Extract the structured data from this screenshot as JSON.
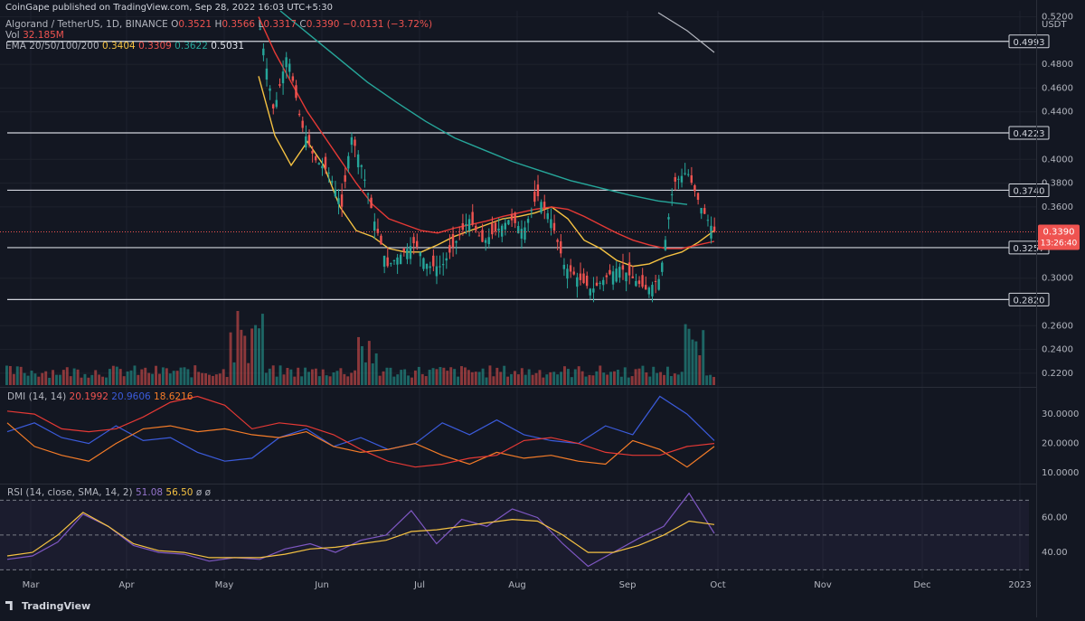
{
  "header": {
    "published": "CoinGape published on TradingView.com, Sep 28, 2022 16:03 UTC+5:30"
  },
  "legend": {
    "symbol": "Algorand / TetherUS, 1D, BINANCE",
    "o_label": "O",
    "o_value": "0.3521",
    "h_label": "H",
    "h_value": "0.3566",
    "l_label": "L",
    "l_value": "0.3317",
    "c_label": "C",
    "c_value": "0.3390",
    "change": "−0.0131 (−3.72%)",
    "vol_label": "Vol",
    "vol_value": "32.185M",
    "ema_label": "EMA 20/50/100/200",
    "ema20": "0.3404",
    "ema50": "0.3309",
    "ema100": "0.3622",
    "ema200": "0.5031",
    "dmi_label": "DMI (14, 14)",
    "dmi_adx": "20.1992",
    "dmi_plus": "20.9606",
    "dmi_minus": "18.6216",
    "rsi_label": "RSI (14, close, SMA, 14, 2)",
    "rsi_value": "51.08",
    "rsi_sma": "56.50",
    "rsi_x1": "ø",
    "rsi_x2": "ø"
  },
  "footer": {
    "brand": "TradingView"
  },
  "colors": {
    "bg": "#131722",
    "up": "#26a69a",
    "down": "#ef5350",
    "ema20": "#f5c242",
    "ema50": "#e53935",
    "ema100": "#26a69a",
    "ema200": "#b2b5be",
    "dmi_plus": "#3b5bdb",
    "dmi_minus": "#f57c28",
    "dmi_adx": "#e53935",
    "rsi": "#7e57c2",
    "rsi_sma": "#f5c242"
  },
  "chart_data": [
    {
      "type": "candlestick",
      "currency": "USDT",
      "x_ticks": [
        "Mar",
        "Apr",
        "May",
        "Jun",
        "Jul",
        "Aug",
        "Sep",
        "Oct",
        "Nov",
        "Dec",
        "2023"
      ],
      "y_ticks": [
        "0.5200",
        "0.4800",
        "0.4600",
        "0.4400",
        "0.4000",
        "0.3800",
        "0.3600",
        "0.3000",
        "0.2600",
        "0.2400",
        "0.2200"
      ],
      "ylim": [
        0.21,
        0.525
      ],
      "levels": [
        0.4993,
        0.4223,
        0.374,
        0.3257,
        0.282
      ],
      "last_price": "0.3390",
      "countdown": "13:26:40",
      "ema_series": [
        {
          "name": "EMA 20",
          "values": [
            0.47,
            0.42,
            0.395,
            0.415,
            0.395,
            0.36,
            0.34,
            0.335,
            0.325,
            0.322,
            0.322,
            0.328,
            0.335,
            0.34,
            0.345,
            0.35,
            0.352,
            0.355,
            0.36,
            0.35,
            0.332,
            0.325,
            0.315,
            0.31,
            0.312,
            0.318,
            0.322,
            0.33,
            0.34
          ]
        },
        {
          "name": "EMA 50",
          "values": [
            0.52,
            0.49,
            0.465,
            0.44,
            0.42,
            0.4,
            0.38,
            0.362,
            0.35,
            0.345,
            0.34,
            0.338,
            0.342,
            0.345,
            0.348,
            0.352,
            0.355,
            0.358,
            0.36,
            0.358,
            0.352,
            0.345,
            0.338,
            0.332,
            0.328,
            0.325,
            0.325,
            0.328,
            0.331
          ]
        }
      ],
      "ema100_values": [
        0.525,
        0.505,
        0.485,
        0.465,
        0.448,
        0.432,
        0.418,
        0.408,
        0.398,
        0.39,
        0.382,
        0.376,
        0.37,
        0.365,
        0.362
      ]
    },
    {
      "type": "line",
      "name": "DMI (14, 14)",
      "y_ticks": [
        "30.0000",
        "20.0000",
        "10.0000"
      ],
      "ylim": [
        7,
        38
      ],
      "series": [
        {
          "name": "DI+",
          "values": [
            24,
            27,
            22,
            20,
            26,
            21,
            22,
            17,
            14,
            15,
            22,
            25,
            19,
            22,
            18,
            20,
            27,
            23,
            28,
            23,
            21,
            20,
            26,
            23,
            36,
            30,
            21
          ]
        },
        {
          "name": "DI-",
          "values": [
            27,
            19,
            16,
            14,
            20,
            25,
            26,
            24,
            25,
            23,
            22,
            24,
            19,
            17,
            18,
            20,
            16,
            13,
            17,
            15,
            16,
            14,
            13,
            21,
            18,
            12,
            19
          ]
        },
        {
          "name": "ADX",
          "values": [
            31,
            30,
            25,
            24,
            25,
            29,
            34,
            36,
            33,
            25,
            27,
            26,
            23,
            18,
            14,
            12,
            13,
            15,
            16,
            21,
            22,
            20,
            17,
            16,
            16,
            19,
            20
          ]
        }
      ]
    },
    {
      "type": "line",
      "name": "RSI (14, close, SMA, 14, 2)",
      "y_ticks": [
        "60.00",
        "40.00"
      ],
      "ylim": [
        25,
        78
      ],
      "band": [
        30,
        70
      ],
      "series": [
        {
          "name": "RSI",
          "values": [
            36,
            38,
            46,
            62,
            55,
            44,
            40,
            39,
            35,
            37,
            36,
            42,
            45,
            40,
            47,
            50,
            64,
            45,
            59,
            55,
            65,
            60,
            45,
            32,
            40,
            48,
            55,
            74,
            51
          ]
        },
        {
          "name": "RSI SMA",
          "values": [
            38,
            40,
            50,
            63,
            55,
            45,
            41,
            40,
            37,
            37,
            37,
            39,
            42,
            43,
            45,
            47,
            52,
            53,
            55,
            57,
            59,
            58,
            50,
            40,
            40,
            44,
            50,
            58,
            56
          ]
        }
      ]
    }
  ]
}
